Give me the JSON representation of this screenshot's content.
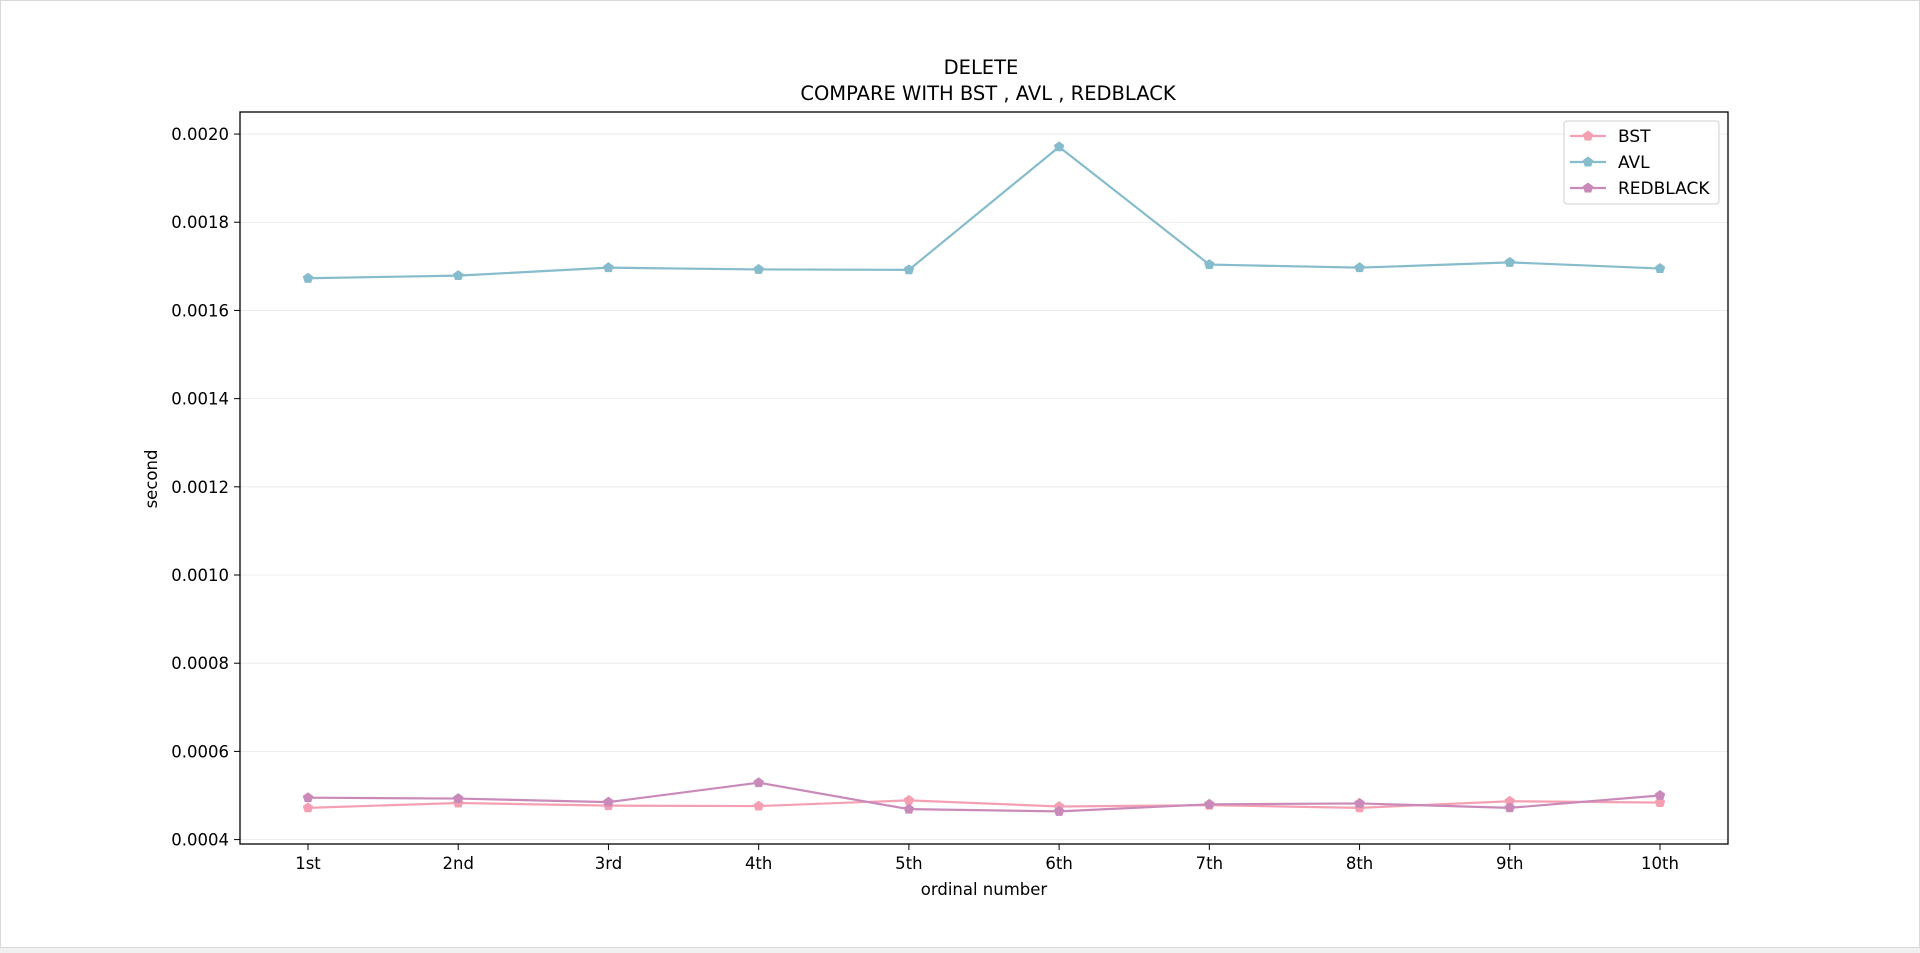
{
  "chart_data": {
    "type": "line",
    "title": "DELETE",
    "subtitle": "COMPARE WITH BST , AVL , REDBLACK",
    "xlabel": "ordinal number",
    "ylabel": "second",
    "categories": [
      "1st",
      "2nd",
      "3rd",
      "4th",
      "5th",
      "6th",
      "7th",
      "8th",
      "9th",
      "10th"
    ],
    "ylim": [
      0.00039,
      0.00205
    ],
    "yticks": [
      0.0004,
      0.0006,
      0.0008,
      0.001,
      0.0012,
      0.0014,
      0.0016,
      0.0018,
      0.002
    ],
    "ytick_labels": [
      "0.0004",
      "0.0006",
      "0.0008",
      "0.0010",
      "0.0012",
      "0.0014",
      "0.0016",
      "0.0018",
      "0.0020"
    ],
    "grid": true,
    "legend_position": "top-right",
    "series": [
      {
        "name": "BST",
        "color": "#f4a0b2",
        "marker": "pentagon",
        "values": [
          0.000472,
          0.000483,
          0.000477,
          0.000476,
          0.000489,
          0.000475,
          0.000478,
          0.000472,
          0.000487,
          0.000484
        ]
      },
      {
        "name": "AVL",
        "color": "#86bccc",
        "marker": "pentagon",
        "values": [
          0.001673,
          0.001679,
          0.001697,
          0.001693,
          0.001692,
          0.001971,
          0.001704,
          0.001697,
          0.001709,
          0.001695
        ]
      },
      {
        "name": "REDBLACK",
        "color": "#c98ab9",
        "marker": "pentagon",
        "values": [
          0.000495,
          0.000493,
          0.000485,
          0.000529,
          0.000469,
          0.000464,
          0.00048,
          0.000482,
          0.000472,
          0.0005
        ]
      }
    ]
  }
}
